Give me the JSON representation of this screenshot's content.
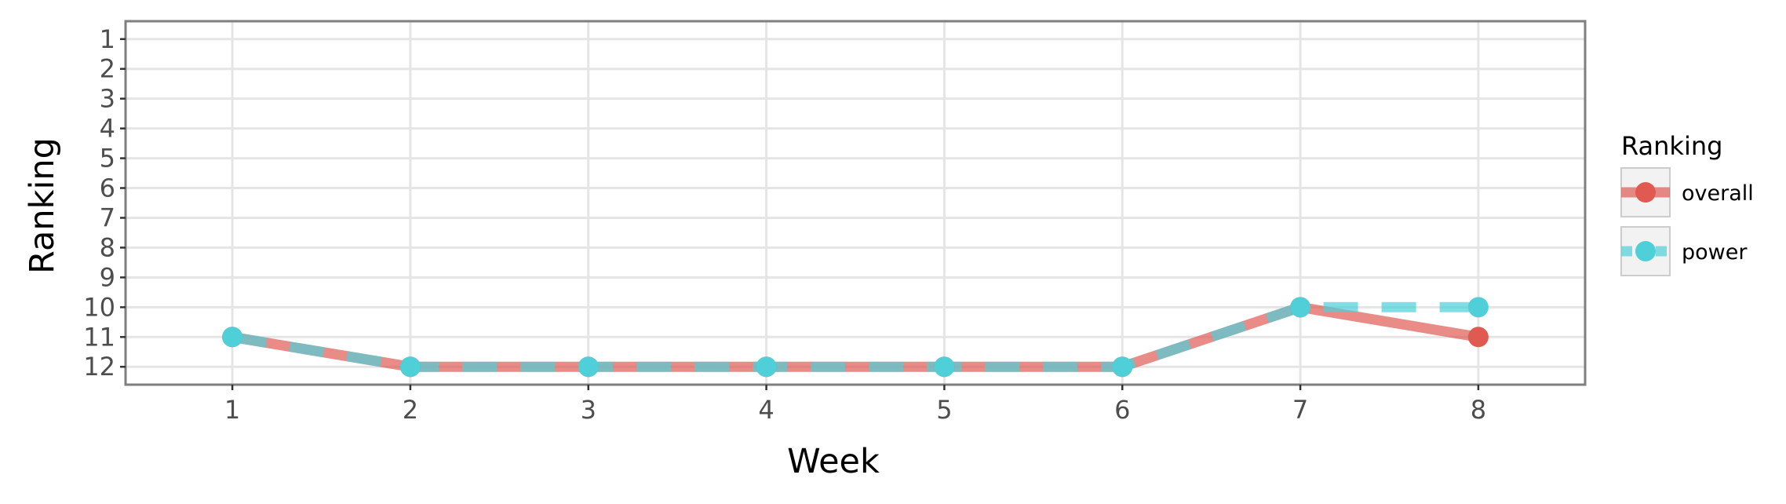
{
  "chart_data": {
    "type": "line",
    "title": "",
    "xlabel": "Week",
    "ylabel": "Ranking",
    "x": [
      1,
      2,
      3,
      4,
      5,
      6,
      7,
      8
    ],
    "x_tick_labels": [
      "1",
      "2",
      "3",
      "4",
      "5",
      "6",
      "7",
      "8"
    ],
    "y_tick_labels": [
      "1",
      "2",
      "3",
      "4",
      "5",
      "6",
      "7",
      "8",
      "9",
      "10",
      "11",
      "12"
    ],
    "xlim": [
      0.4,
      8.6
    ],
    "ylim": [
      12.6,
      0.4
    ],
    "y_reversed": true,
    "grid": true,
    "legend": {
      "title": "Ranking",
      "placement": "right",
      "entries": [
        "overall",
        "power"
      ]
    },
    "series": [
      {
        "name": "overall",
        "color": "#e05a52",
        "line_style": "solid",
        "values": [
          11,
          12,
          12,
          12,
          12,
          12,
          10,
          11
        ]
      },
      {
        "name": "power",
        "color": "#4fd0d8",
        "line_style": "dashed",
        "values": [
          11,
          12,
          12,
          12,
          12,
          12,
          10,
          10
        ]
      }
    ]
  }
}
